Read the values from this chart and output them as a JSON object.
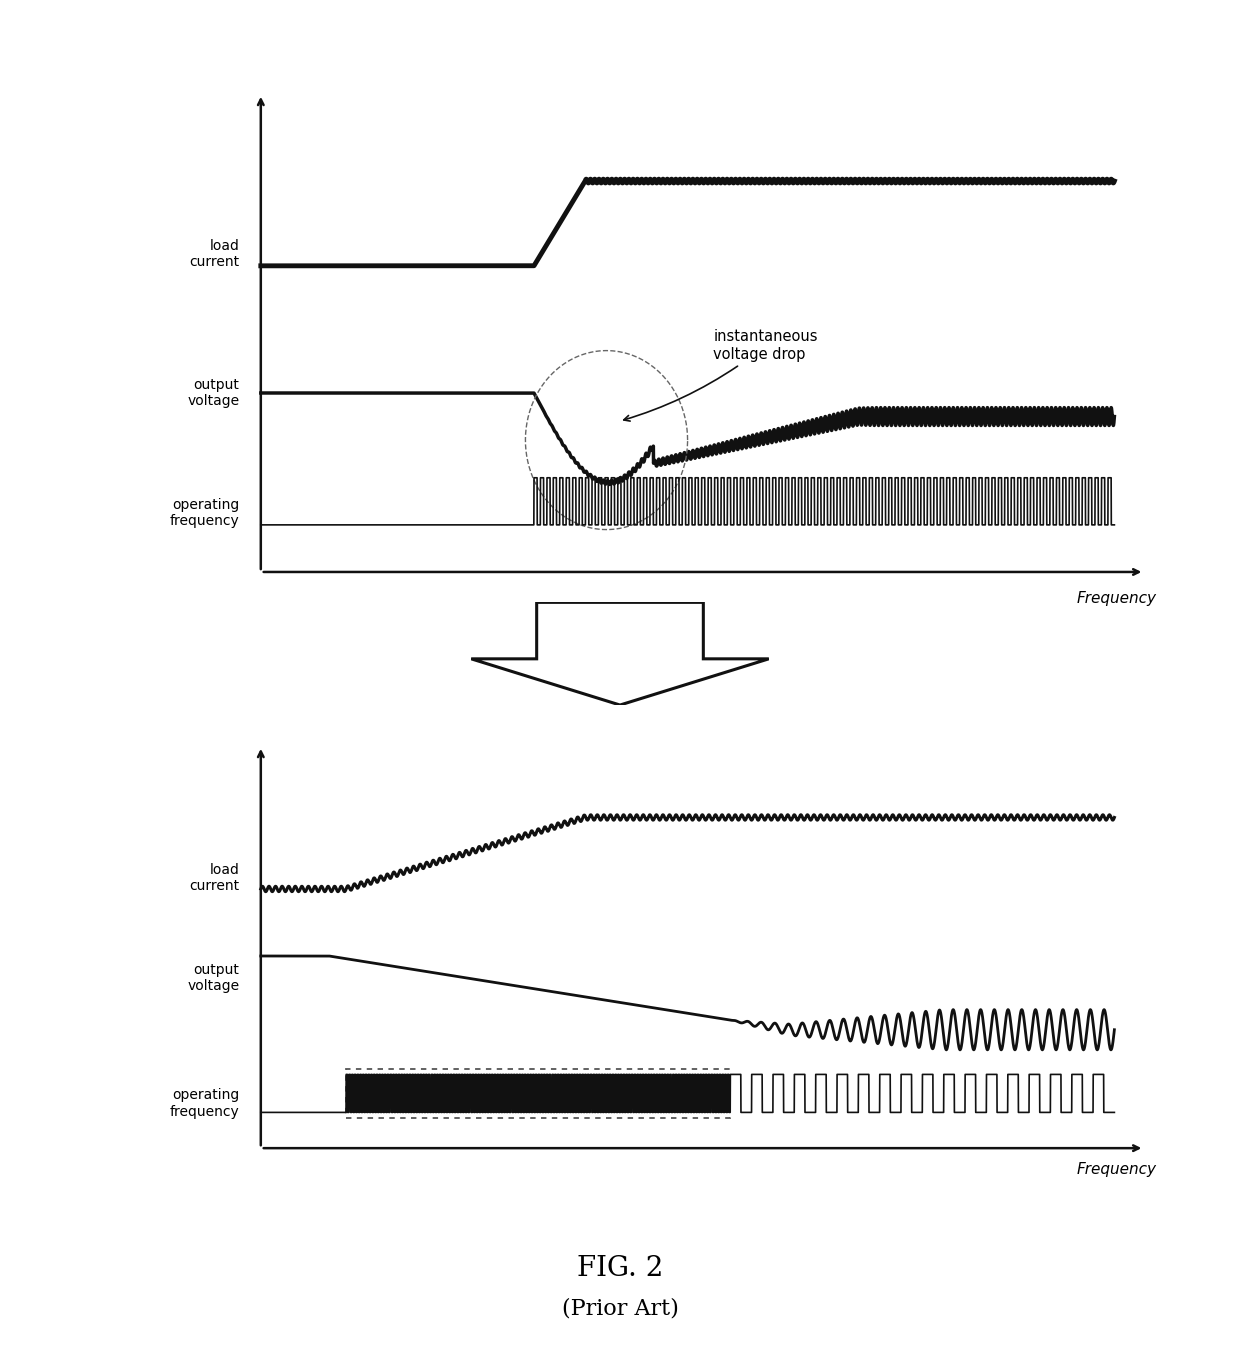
{
  "bg_color": "#ffffff",
  "line_color": "#111111",
  "fig_title": "FIG. 2",
  "fig_subtitle": "(Prior Art)",
  "freq_label": "Frequency",
  "top_labels": [
    "load\ncurrent",
    "output\nvoltage",
    "operating\nfrequency"
  ],
  "bot_labels": [
    "load\ncurrent",
    "output\nvoltage",
    "operating\nfrequency"
  ],
  "annotation": "instantaneous\nvoltage drop"
}
